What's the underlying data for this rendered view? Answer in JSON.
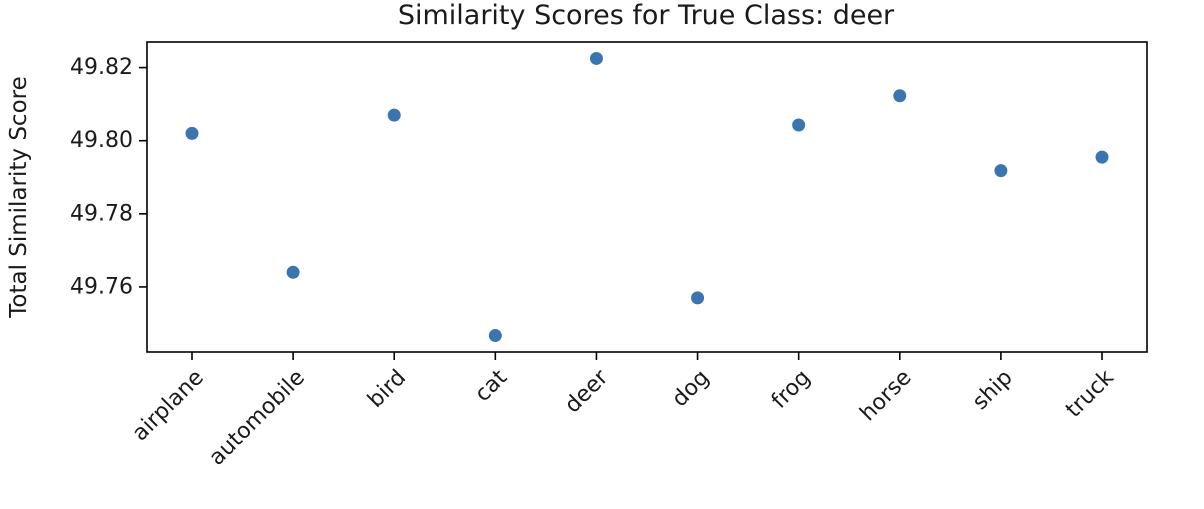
{
  "chart_data": {
    "type": "scatter",
    "title": "Similarity Scores for True Class: deer",
    "xlabel": "",
    "ylabel": "Total Similarity Score",
    "categories": [
      "airplane",
      "automobile",
      "bird",
      "cat",
      "deer",
      "dog",
      "frog",
      "horse",
      "ship",
      "truck"
    ],
    "values": [
      49.802,
      49.764,
      49.807,
      49.7467,
      49.8225,
      49.757,
      49.8043,
      49.8123,
      49.7918,
      49.7955
    ],
    "yticks": [
      49.76,
      49.78,
      49.8,
      49.82
    ],
    "ytick_labels": [
      "49.76",
      "49.78",
      "49.80",
      "49.82"
    ],
    "ylim": [
      49.7422,
      49.827
    ],
    "grid": false,
    "point_color": "#3a75b0"
  }
}
